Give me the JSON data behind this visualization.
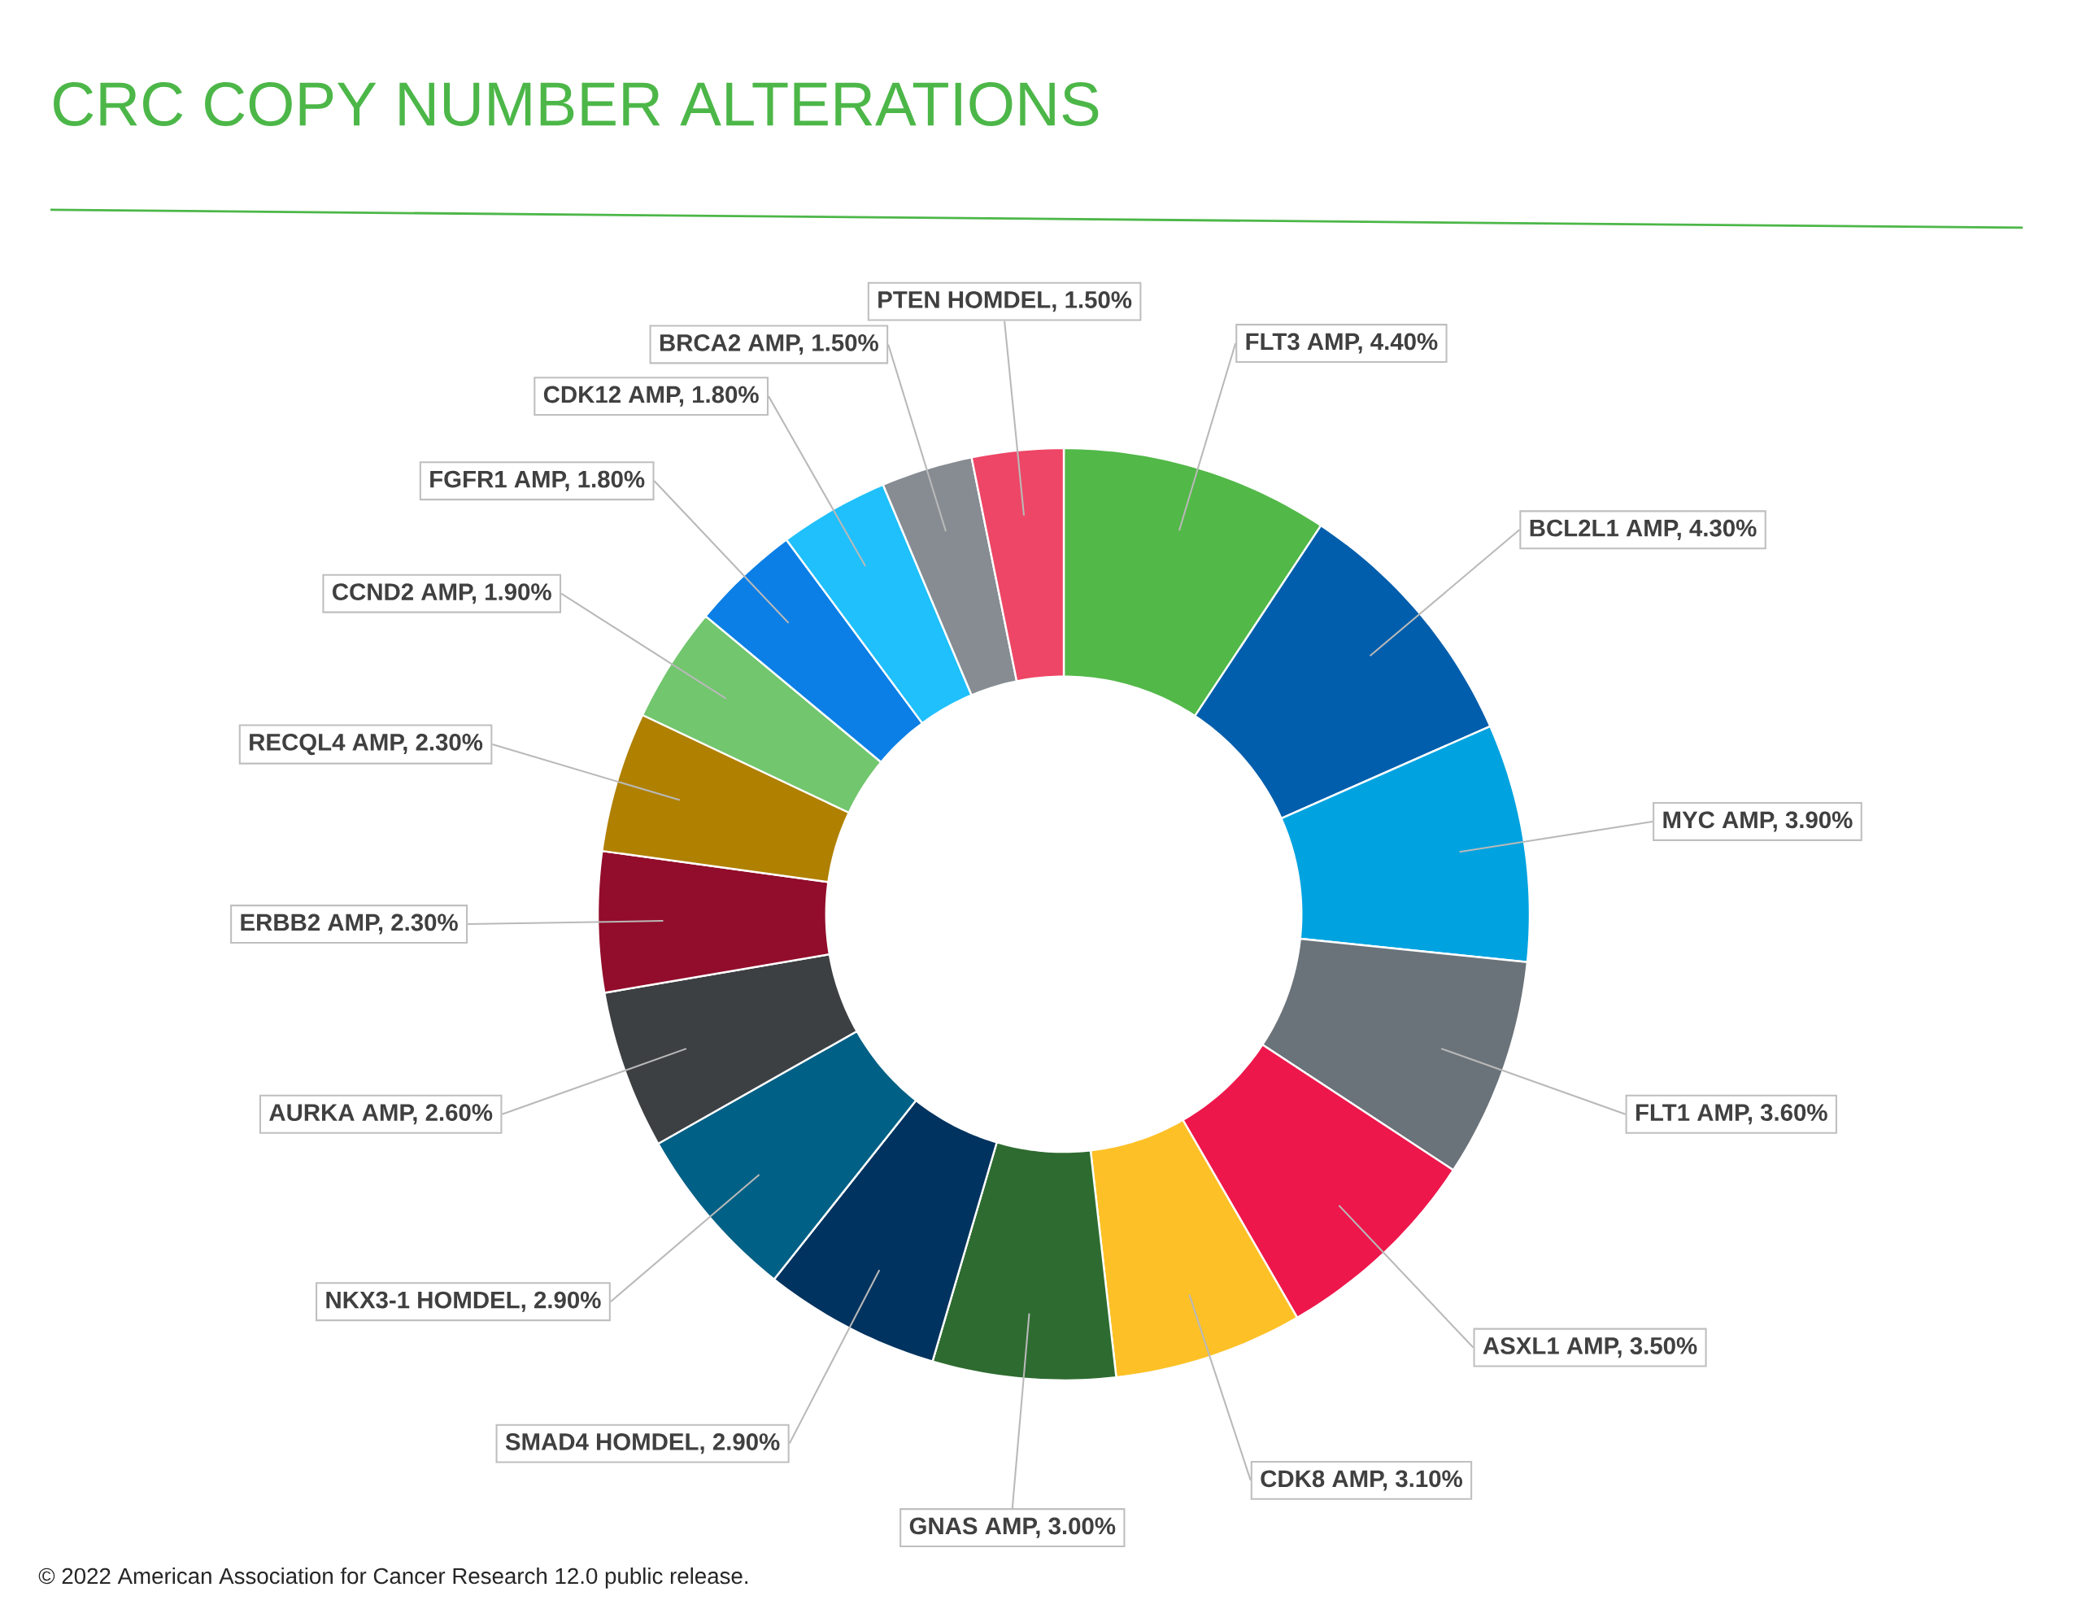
{
  "chart_data": {
    "type": "donut",
    "title": "CRC COPY NUMBER ALTERATIONS",
    "categories": [
      "FLT3 AMP, 4.40%",
      "BCL2L1 AMP, 4.30%",
      "MYC AMP, 3.90%",
      "FLT1 AMP, 3.60%",
      "ASXL1 AMP, 3.50%",
      "CDK8 AMP, 3.10%",
      "GNAS AMP, 3.00%",
      "SMAD4 HOMDEL, 2.90%",
      "NKX3-1 HOMDEL, 2.90%",
      "AURKA AMP, 2.60%",
      "ERBB2 AMP, 2.30%",
      "RECQL4 AMP, 2.30%",
      "CCND2 AMP, 1.90%",
      "FGFR1 AMP, 1.80%",
      "CDK12 AMP, 1.80%",
      "BRCA2 AMP, 1.50%",
      "PTEN HOMDEL, 1.50%"
    ],
    "values": [
      4.4,
      4.3,
      3.9,
      3.6,
      3.5,
      3.1,
      3.0,
      2.9,
      2.9,
      2.6,
      2.3,
      2.3,
      1.9,
      1.8,
      1.8,
      1.5,
      1.5
    ],
    "colors": [
      "#52b848",
      "#005eac",
      "#00a3e0",
      "#6b737a",
      "#ed174b",
      "#fdc127",
      "#2e6b30",
      "#00335f",
      "#006085",
      "#3d4043",
      "#920d2b",
      "#b08000",
      "#72c66e",
      "#0b7fe6",
      "#1fc0fb",
      "#868c92",
      "#ee4666"
    ],
    "annotations": [
      "© 2022 American Association for Cancer Research 12.0 public release."
    ]
  }
}
